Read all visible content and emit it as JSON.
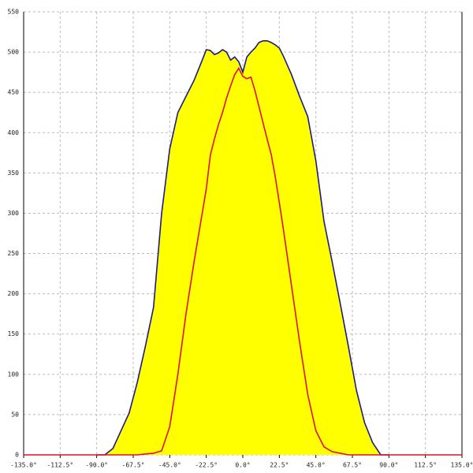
{
  "chart_data": {
    "type": "line",
    "x": [
      -135,
      -90,
      -85,
      -80,
      -75,
      -70,
      -65,
      -60,
      -55,
      -50,
      -45,
      -40,
      -35,
      -30,
      -25,
      -22.5,
      -20,
      -17.5,
      -15,
      -12.5,
      -10,
      -7.5,
      -5,
      -2.5,
      0,
      2.5,
      5,
      7.5,
      10,
      12.5,
      15,
      17.5,
      20,
      22.5,
      25,
      30,
      35,
      40,
      45,
      50,
      55,
      60,
      65,
      70,
      75,
      80,
      85,
      90,
      135
    ],
    "series": [
      {
        "color": "#1a1a8c",
        "fill": "#ffff00",
        "values": [
          null,
          0,
          0,
          8,
          30,
          52,
          90,
          135,
          183,
          300,
          380,
          425,
          445,
          465,
          490,
          503,
          502,
          497,
          499,
          503,
          500,
          490,
          494,
          488,
          475,
          494,
          500,
          505,
          512,
          514,
          514,
          512,
          509,
          505,
          495,
          472,
          445,
          420,
          365,
          290,
          240,
          188,
          135,
          80,
          40,
          15,
          0,
          0,
          null
        ]
      },
      {
        "color": "#e0102a",
        "values": [
          0,
          0,
          0,
          0,
          0,
          0,
          0,
          1,
          2,
          5,
          35,
          100,
          175,
          240,
          300,
          330,
          372,
          392,
          410,
          425,
          443,
          458,
          472,
          480,
          470,
          467,
          469,
          452,
          432,
          412,
          392,
          373,
          345,
          313,
          280,
          210,
          140,
          75,
          30,
          10,
          4,
          2,
          0,
          0,
          0,
          0,
          0,
          0,
          0
        ]
      }
    ],
    "xlim": [
      -135,
      135
    ],
    "ylim": [
      0,
      550
    ],
    "xticks": [
      {
        "value": -135,
        "label": "-135.0°"
      },
      {
        "value": -112.5,
        "label": "-112.5°"
      },
      {
        "value": -90,
        "label": "-90.0°"
      },
      {
        "value": -67.5,
        "label": "-67.5°"
      },
      {
        "value": -45,
        "label": "-45.0°"
      },
      {
        "value": -22.5,
        "label": "-22.5°"
      },
      {
        "value": 0,
        "label": "0.0°"
      },
      {
        "value": 22.5,
        "label": "22.5°"
      },
      {
        "value": 45,
        "label": "45.0°"
      },
      {
        "value": 67.5,
        "label": "67.5°"
      },
      {
        "value": 90,
        "label": "90.0°"
      },
      {
        "value": 112.5,
        "label": "112.5°"
      },
      {
        "value": 135,
        "label": "135.0°"
      }
    ],
    "yticks": [
      0,
      50,
      100,
      150,
      200,
      250,
      300,
      350,
      400,
      450,
      500,
      550
    ],
    "grid": true
  }
}
